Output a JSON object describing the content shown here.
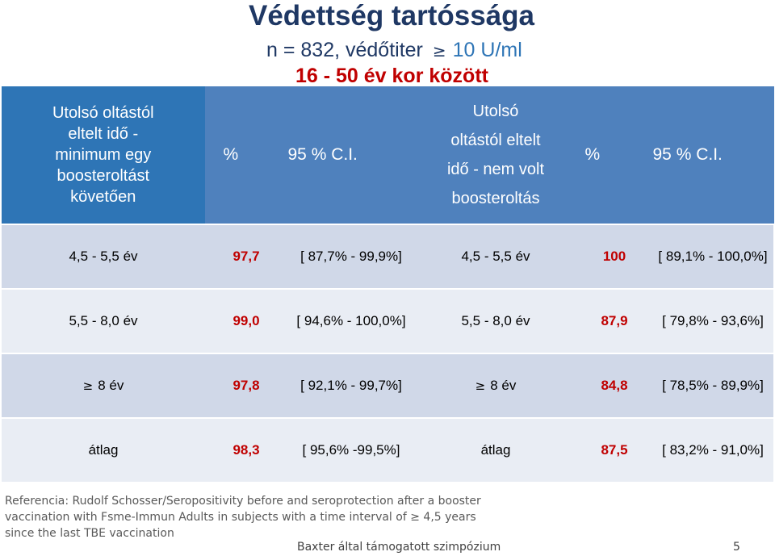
{
  "title": "Védettség tartóssága",
  "subtitle": {
    "prefix": "n = 832,  védőtiter",
    "ge_symbol": "≥",
    "value": "10 U/ml"
  },
  "age_range": "16  - 50 év kor között",
  "table": {
    "header": {
      "col1": [
        "Utolsó oltástól",
        "eltelt idő -",
        "minimum egy",
        "boosteroltást",
        "követően"
      ],
      "col2": "%",
      "col3": "95 % C.I.",
      "col4": [
        "Utolsó",
        "oltástól  eltelt",
        "idő - nem volt",
        "boosteroltás"
      ],
      "col5": "%",
      "col6": "95 % C.I."
    },
    "rows": [
      {
        "interval_a": "4,5  - 5,5 év",
        "pct_a": "97,7",
        "ci_a": "[ 87,7% - 99,9%]",
        "interval_b": "4,5  - 5,5 év",
        "pct_b": "100",
        "ci_b": "[ 89,1% - 100,0%]"
      },
      {
        "interval_a": "5,5 - 8,0 év",
        "pct_a": "99,0",
        "ci_a": "[ 94,6% - 100,0%]",
        "interval_b": "5,5 - 8,0 év",
        "pct_b": "87,9",
        "ci_b": "[ 79,8% - 93,6%]"
      },
      {
        "ge_a": "≥",
        "interval_a": "8 év",
        "pct_a": "97,8",
        "ci_a": "[ 92,1% - 99,7%]",
        "ge_b": "≥",
        "interval_b": "8 év",
        "pct_b": "84,8",
        "ci_b": "[ 78,5% - 89,9%]"
      },
      {
        "interval_a": "átlag",
        "pct_a": "98,3",
        "ci_a": "[ 95,6% -99,5%]",
        "interval_b": "átlag",
        "pct_b": "87,5",
        "ci_b": "[ 83,2% - 91,0%]"
      }
    ]
  },
  "reference": {
    "line1": "Referencia: Rudolf Schosser/Seropositivity before and seroprotection after a booster",
    "line2_prefix": "vaccination with Fsme-Immun Adults in subjects with a time interval of",
    "line2_ge": "≥",
    "line2_suffix": "4,5 years",
    "line3": "since the last TBE vaccination"
  },
  "footer": "Baxter által támogatott szimpózium",
  "page_number": "5",
  "colors": {
    "title": "#1f3864",
    "accent_red": "#c00000",
    "header_blue": "#4f81bd",
    "header_blue_dark": "#2e75b6",
    "row_odd": "#d0d8e8",
    "row_even": "#e9edf4"
  }
}
